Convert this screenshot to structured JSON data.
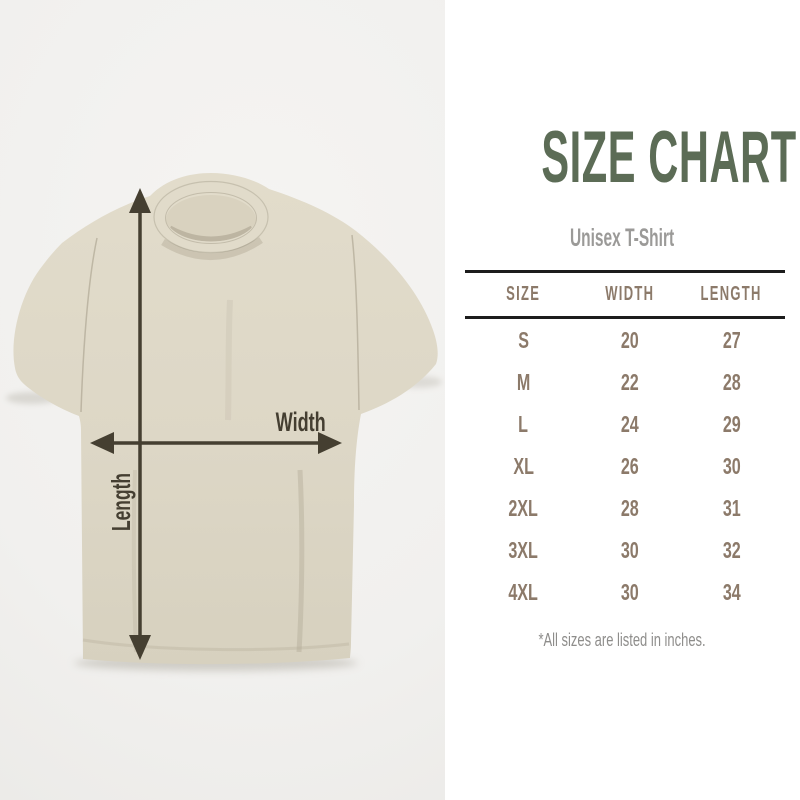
{
  "title": "SIZE CHART",
  "subtitle": "Unisex T-Shirt",
  "footnote": "*All sizes are listed in inches.",
  "diagram": {
    "width_label": "Width",
    "length_label": "Length"
  },
  "chart_data": {
    "type": "table",
    "title": "SIZE CHART",
    "subtitle": "Unisex T-Shirt",
    "columns": [
      "SIZE",
      "WIDTH",
      "LENGTH"
    ],
    "rows": [
      [
        "S",
        "20",
        "27"
      ],
      [
        "M",
        "22",
        "28"
      ],
      [
        "L",
        "24",
        "29"
      ],
      [
        "XL",
        "26",
        "30"
      ],
      [
        "2XL",
        "28",
        "31"
      ],
      [
        "3XL",
        "30",
        "32"
      ],
      [
        "4XL",
        "30",
        "34"
      ]
    ],
    "units": "inches",
    "footnote": "*All sizes are listed in inches."
  },
  "colors": {
    "title_green": "#5c6c56",
    "table_text_taupe": "#8c7a6a",
    "table_rule": "#1c1c1c",
    "subtitle_gray": "#9b9a98",
    "footnote_gray": "#8e8d8b",
    "arrow_dark": "#453f31",
    "shirt_beige": "#ddd7c6",
    "photo_background": "#f1f0ee",
    "panel_background": "#ffffff"
  }
}
